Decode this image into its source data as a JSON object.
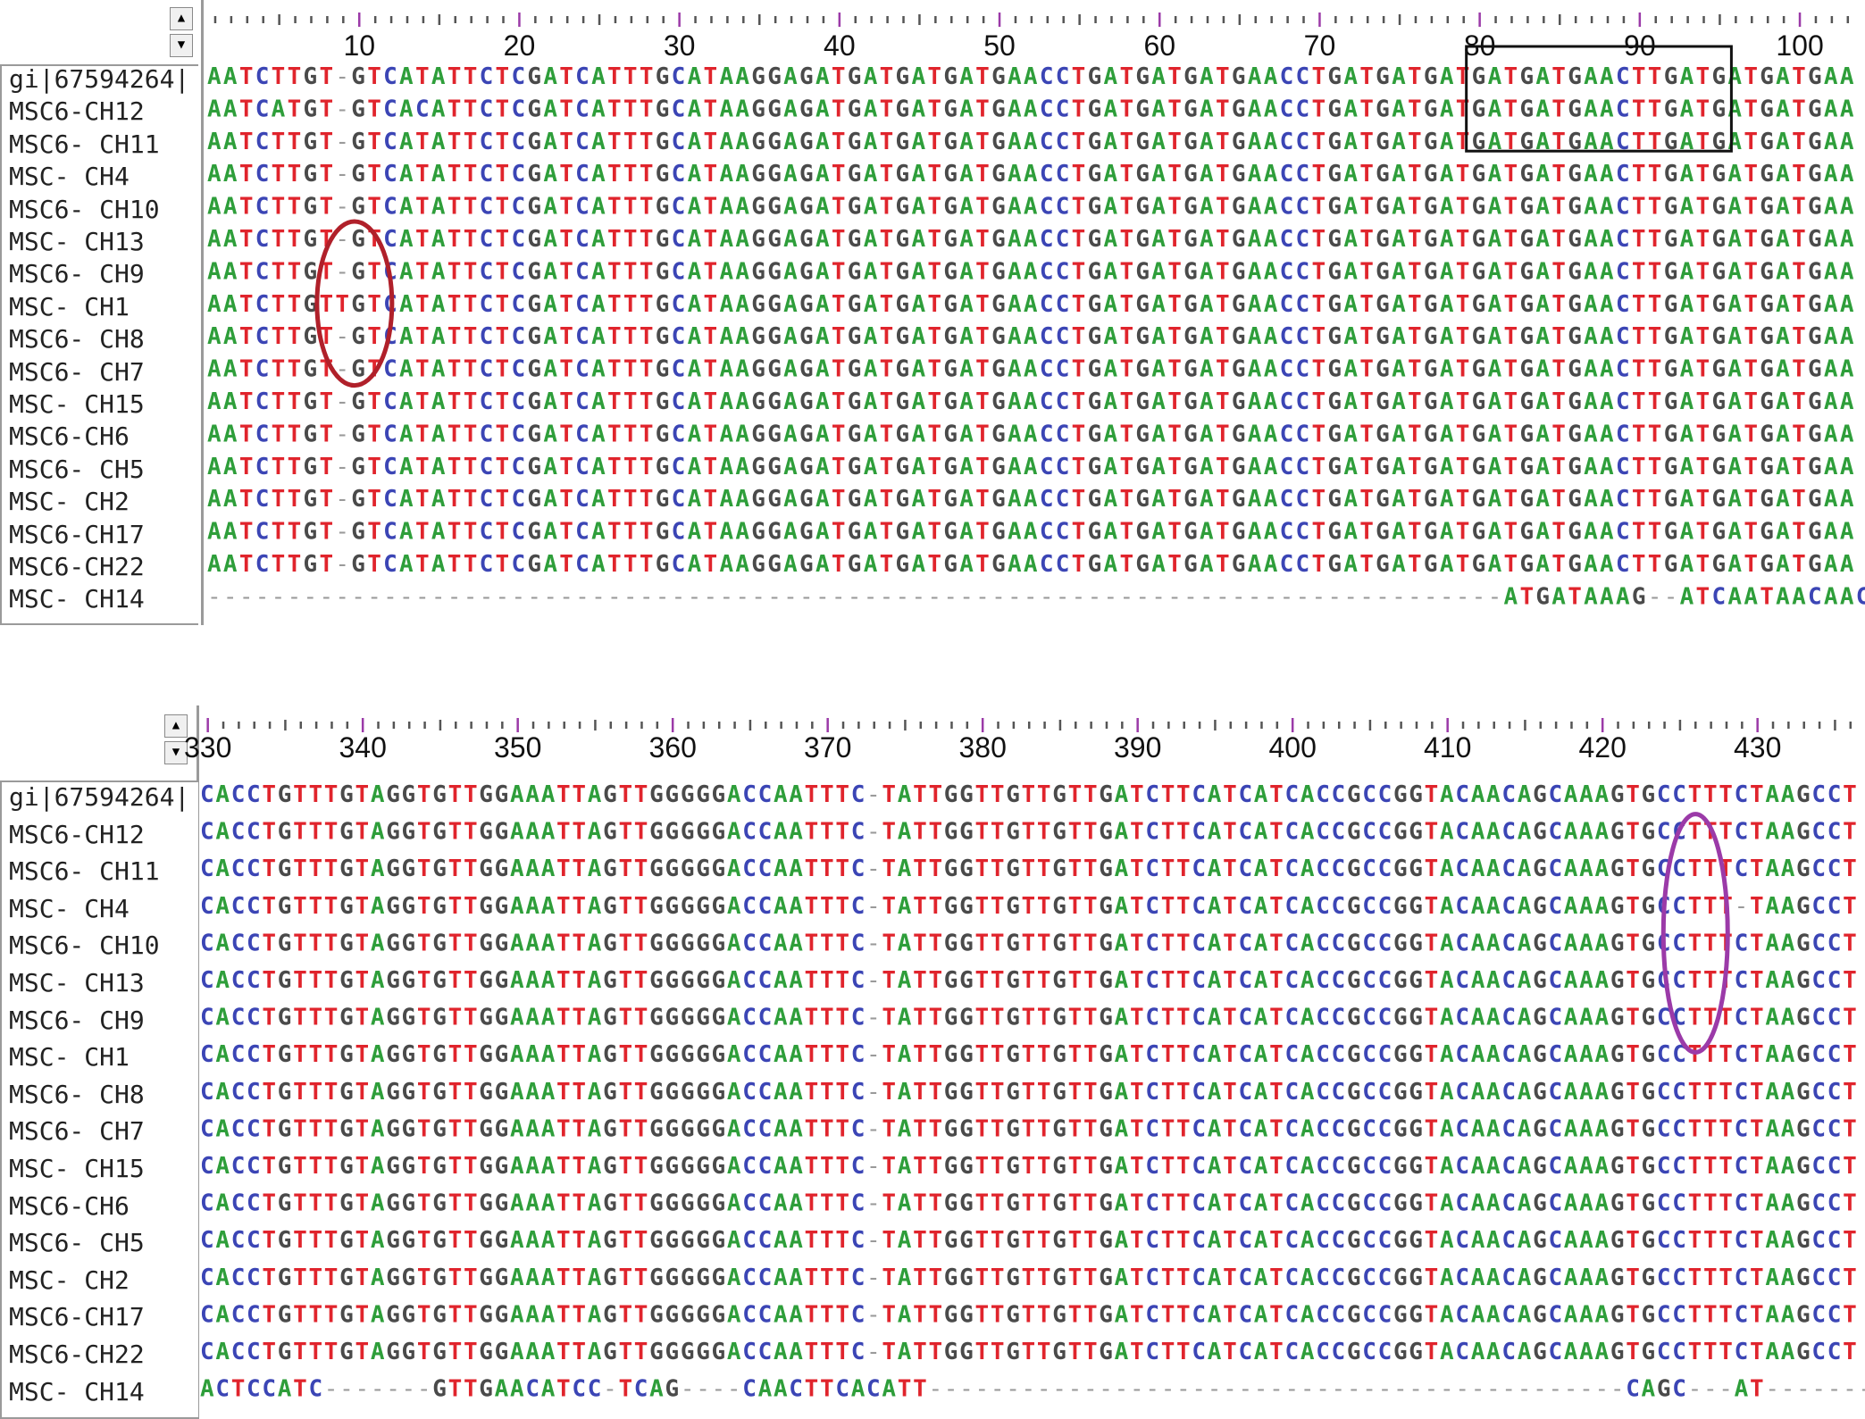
{
  "colors": {
    "A": "#2e9e3a",
    "C": "#3b45b5",
    "G": "#4a4a4a",
    "T": "#e0242c",
    "gap": "#9a9a9a"
  },
  "panels": [
    {
      "id": "top",
      "scroll_up": "▲",
      "scroll_down": "▼",
      "ruler_start": 1,
      "ruler_labels": [
        "10",
        "20",
        "30",
        "40",
        "50",
        "60",
        "70",
        "80",
        "90",
        "100"
      ],
      "rows": [
        {
          "name": "gi|67594264|",
          "seq": "AATCTTGT-GTCATATTCTCGATCATTTGCATAAGGAGATGATGATGATGAACCTGATGATGATGAACCTGATGATGATGATGATGAACTTGATGATGATGAA"
        },
        {
          "name": "MSC6-CH12",
          "seq": "AATCATGT-GTCACATTCTCGATCATTTGCATAAGGAGATGATGATGATGAACCTGATGATGATGAACCTGATGATGATGATGATGAACTTGATGATGATGAA"
        },
        {
          "name": "MSC6- CH11",
          "seq": "AATCTTGT-GTCATATTCTCGATCATTTGCATAAGGAGATGATGATGATGAACCTGATGATGATGAACCTGATGATGATGATGATGAACTTGATGATGATGAA"
        },
        {
          "name": "MSC- CH4",
          "seq": "AATCTTGT-GTCATATTCTCGATCATTTGCATAAGGAGATGATGATGATGAACCTGATGATGATGAACCTGATGATGATGATGATGAACTTGATGATGATGAA"
        },
        {
          "name": "MSC6- CH10",
          "seq": "AATCTTGT-GTCATATTCTCGATCATTTGCATAAGGAGATGATGATGATGAACCTGATGATGATGAACCTGATGATGATGATGATGAACTTGATGATGATGAA"
        },
        {
          "name": "MSC- CH13",
          "seq": "AATCTTGT-GTCATATTCTCGATCATTTGCATAAGGAGATGATGATGATGAACCTGATGATGATGAACCTGATGATGATGATGATGAACTTGATGATGATGAA"
        },
        {
          "name": "MSC6- CH9",
          "seq": "AATCTTGT-GTCATATTCTCGATCATTTGCATAAGGAGATGATGATGATGAACCTGATGATGATGAACCTGATGATGATGATGATGAACTTGATGATGATGAA"
        },
        {
          "name": "MSC- CH1",
          "seq": "AATCTTGTTGTCATATTCTCGATCATTTGCATAAGGAGATGATGATGATGAACCTGATGATGATGAACCTGATGATGATGATGATGAACTTGATGATGATGAA"
        },
        {
          "name": "MSC6- CH8",
          "seq": "AATCTTGT-GTCATATTCTCGATCATTTGCATAAGGAGATGATGATGATGAACCTGATGATGATGAACCTGATGATGATGATGATGAACTTGATGATGATGAA"
        },
        {
          "name": "MSC6- CH7",
          "seq": "AATCTTGT-GTCATATTCTCGATCATTTGCATAAGGAGATGATGATGATGAACCTGATGATGATGAACCTGATGATGATGATGATGAACTTGATGATGATGAA"
        },
        {
          "name": "MSC- CH15",
          "seq": "AATCTTGT-GTCATATTCTCGATCATTTGCATAAGGAGATGATGATGATGAACCTGATGATGATGAACCTGATGATGATGATGATGAACTTGATGATGATGAA"
        },
        {
          "name": "MSC6-CH6",
          "seq": "AATCTTGT-GTCATATTCTCGATCATTTGCATAAGGAGATGATGATGATGAACCTGATGATGATGAACCTGATGATGATGATGATGAACTTGATGATGATGAA"
        },
        {
          "name": "MSC6- CH5",
          "seq": "AATCTTGT-GTCATATTCTCGATCATTTGCATAAGGAGATGATGATGATGAACCTGATGATGATGAACCTGATGATGATGATGATGAACTTGATGATGATGAA"
        },
        {
          "name": "MSC- CH2",
          "seq": "AATCTTGT-GTCATATTCTCGATCATTTGCATAAGGAGATGATGATGATGAACCTGATGATGATGAACCTGATGATGATGATGATGAACTTGATGATGATGAA"
        },
        {
          "name": "MSC6-CH17",
          "seq": "AATCTTGT-GTCATATTCTCGATCATTTGCATAAGGAGATGATGATGATGAACCTGATGATGATGAACCTGATGATGATGATGATGAACTTGATGATGATGAA"
        },
        {
          "name": "MSC6-CH22",
          "seq": "AATCTTGT-GTCATATTCTCGATCATTTGCATAAGGAGATGATGATGATGAACCTGATGATGATGAACCTGATGATGATGATGATGAACTTGATGATGATGAA"
        },
        {
          "name": "MSC- CH14",
          "seq": "---------------------------------------------------------------------------------ATGATAAAG--ATCAATAACAACAAA"
        }
      ]
    },
    {
      "id": "bottom",
      "scroll_up": "▲",
      "scroll_down": "▼",
      "ruler_start": 330,
      "ruler_labels": [
        "330",
        "340",
        "350",
        "360",
        "370",
        "380",
        "390",
        "400",
        "410",
        "420",
        "430"
      ],
      "rows": [
        {
          "name": "gi|67594264|",
          "seq": "CACCTGTTTGTAGGTGTTGGAAATTAGTTGGGGGACCAATTTC-TATTGGTTGTTGTTGATCTTCATCATCACCGCCGGTACAACAGCAAAGTGCCTTTCTAAGCCT"
        },
        {
          "name": "MSC6-CH12",
          "seq": "CACCTGTTTGTAGGTGTTGGAAATTAGTTGGGGGACCAATTTC-TATTGGTTGTTGTTGATCTTCATCATCACCGCCGGTACAACAGCAAAGTGCCTTTCTAAGCCT"
        },
        {
          "name": "MSC6- CH11",
          "seq": "CACCTGTTTGTAGGTGTTGGAAATTAGTTGGGGGACCAATTTC-TATTGGTTGTTGTTGATCTTCATCATCACCGCCGGTACAACAGCAAAGTGCCTTTCTAAGCCT"
        },
        {
          "name": "MSC- CH4",
          "seq": "CACCTGTTTGTAGGTGTTGGAAATTAGTTGGGGGACCAATTTC-TATTGGTTGTTGTTGATCTTCATCATCACCGCCGGTACAACAGCAAAGTGCCTTT-TAAGCCT"
        },
        {
          "name": "MSC6- CH10",
          "seq": "CACCTGTTTGTAGGTGTTGGAAATTAGTTGGGGGACCAATTTC-TATTGGTTGTTGTTGATCTTCATCATCACCGCCGGTACAACAGCAAAGTGCCTTTCTAAGCCT"
        },
        {
          "name": "MSC- CH13",
          "seq": "CACCTGTTTGTAGGTGTTGGAAATTAGTTGGGGGACCAATTTC-TATTGGTTGTTGTTGATCTTCATCATCACCGCCGGTACAACAGCAAAGTGCCTTTCTAAGCCT"
        },
        {
          "name": "MSC6- CH9",
          "seq": "CACCTGTTTGTAGGTGTTGGAAATTAGTTGGGGGACCAATTTC-TATTGGTTGTTGTTGATCTTCATCATCACCGCCGGTACAACAGCAAAGTGCCTTTCTAAGCCT"
        },
        {
          "name": "MSC- CH1",
          "seq": "CACCTGTTTGTAGGTGTTGGAAATTAGTTGGGGGACCAATTTC-TATTGGTTGTTGTTGATCTTCATCATCACCGCCGGTACAACAGCAAAGTGCCTTTCTAAGCCT"
        },
        {
          "name": "MSC6- CH8",
          "seq": "CACCTGTTTGTAGGTGTTGGAAATTAGTTGGGGGACCAATTTC-TATTGGTTGTTGTTGATCTTCATCATCACCGCCGGTACAACAGCAAAGTGCCTTTCTAAGCCT"
        },
        {
          "name": "MSC6- CH7",
          "seq": "CACCTGTTTGTAGGTGTTGGAAATTAGTTGGGGGACCAATTTC-TATTGGTTGTTGTTGATCTTCATCATCACCGCCGGTACAACAGCAAAGTGCCTTTCTAAGCCT"
        },
        {
          "name": "MSC- CH15",
          "seq": "CACCTGTTTGTAGGTGTTGGAAATTAGTTGGGGGACCAATTTC-TATTGGTTGTTGTTGATCTTCATCATCACCGCCGGTACAACAGCAAAGTGCCTTTCTAAGCCT"
        },
        {
          "name": "MSC6-CH6",
          "seq": "CACCTGTTTGTAGGTGTTGGAAATTAGTTGGGGGACCAATTTC-TATTGGTTGTTGTTGATCTTCATCATCACCGCCGGTACAACAGCAAAGTGCCTTTCTAAGCCT"
        },
        {
          "name": "MSC6- CH5",
          "seq": "CACCTGTTTGTAGGTGTTGGAAATTAGTTGGGGGACCAATTTC-TATTGGTTGTTGTTGATCTTCATCATCACCGCCGGTACAACAGCAAAGTGCCTTTCTAAGCCT"
        },
        {
          "name": "MSC- CH2",
          "seq": "CACCTGTTTGTAGGTGTTGGAAATTAGTTGGGGGACCAATTTC-TATTGGTTGTTGTTGATCTTCATCATCACCGCCGGTACAACAGCAAAGTGCCTTTCTAAGCCT"
        },
        {
          "name": "MSC6-CH17",
          "seq": "CACCTGTTTGTAGGTGTTGGAAATTAGTTGGGGGACCAATTTC-TATTGGTTGTTGTTGATCTTCATCATCACCGCCGGTACAACAGCAAAGTGCCTTTCTAAGCCT"
        },
        {
          "name": "MSC6-CH22",
          "seq": "CACCTGTTTGTAGGTGTTGGAAATTAGTTGGGGGACCAATTTC-TATTGGTTGTTGTTGATCTTCATCATCACCGCCGGTACAACAGCAAAGTGCCTTTCTAAGCCT"
        },
        {
          "name": "MSC- CH14",
          "seq": "ACTCCATC-------GTTGAACATCC-TCAG----CAACTTCACATT---------------------------------------------CAGC---AT--------"
        }
      ]
    }
  ],
  "annotations": {
    "top_box_color": "#111111",
    "top_ellipse_color": "#b0202a",
    "bottom_ellipse_color": "#9b3aa8"
  }
}
